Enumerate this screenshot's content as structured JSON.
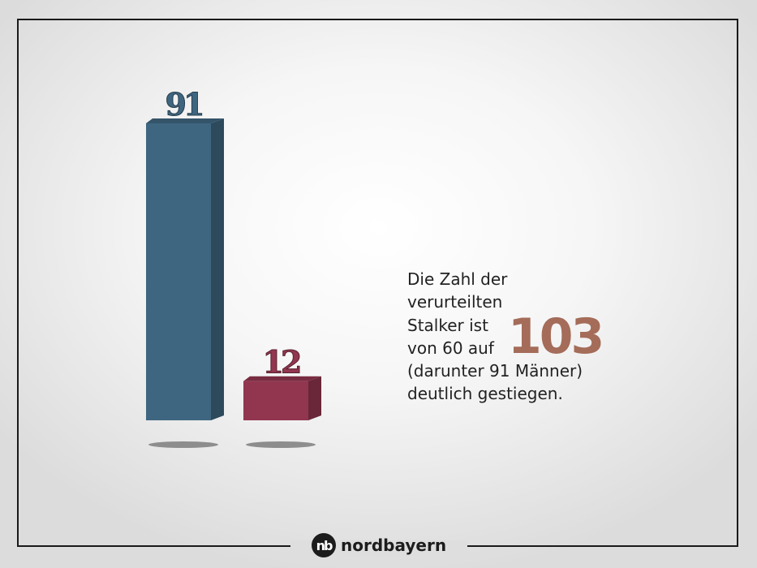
{
  "chart_data": {
    "type": "bar",
    "categories": [
      "",
      ""
    ],
    "values": [
      91,
      12
    ],
    "colors": [
      "#3f6680",
      "#92364f"
    ],
    "ylim": [
      0,
      91
    ],
    "grid": false,
    "legend": "none"
  },
  "annotation": {
    "lines": [
      "Die Zahl der",
      "verurteilten",
      "Stalker ist",
      "von 60 auf",
      "(darunter 91 Männer)",
      "deutlich gestiegen."
    ],
    "highlight_value": "103",
    "highlight_color": "#a46c59"
  },
  "brand": {
    "name": "nordbayern",
    "logo_glyph": "nb",
    "icon": "nordbayern-logo-icon"
  }
}
